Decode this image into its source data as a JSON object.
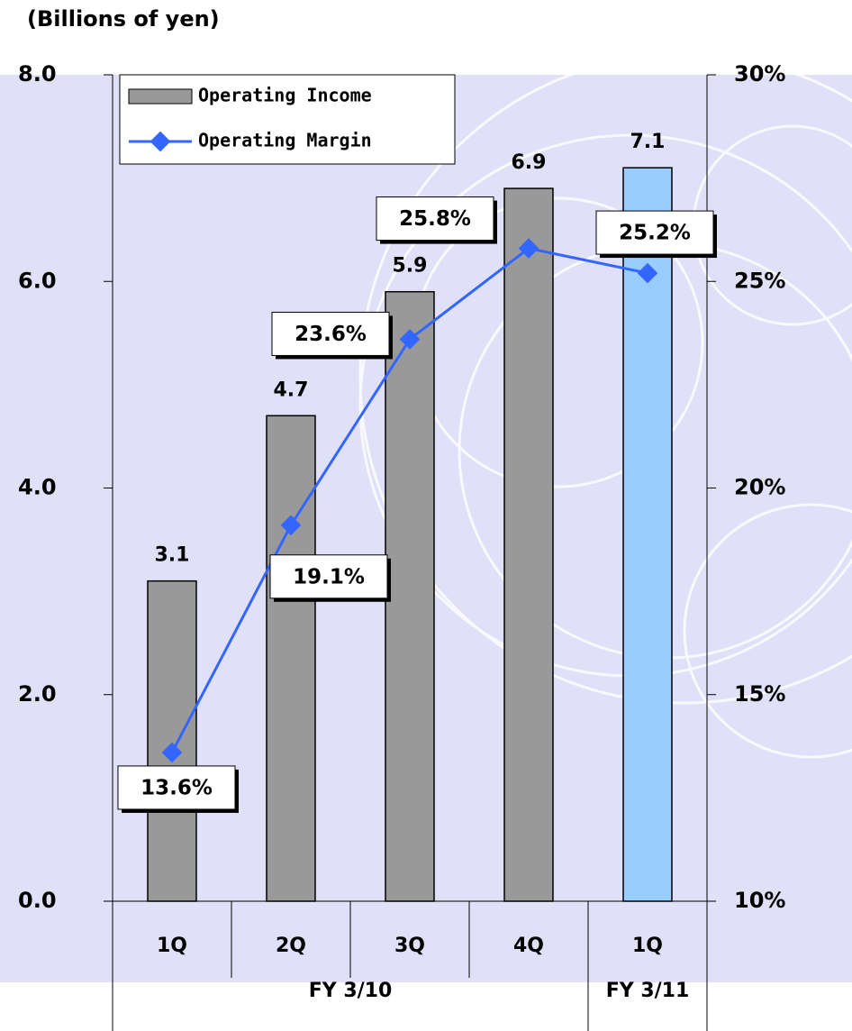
{
  "chart_data": {
    "type": "bar-line",
    "title": "(Billions of yen)",
    "categories": [
      "1Q",
      "2Q",
      "3Q",
      "4Q",
      "1Q"
    ],
    "groups": [
      {
        "label": "FY 3/10",
        "count": 4
      },
      {
        "label": "FY 3/11",
        "count": 1
      }
    ],
    "series": [
      {
        "name": "Operating Income",
        "type": "bar",
        "color": "#999999",
        "colors": [
          "#999999",
          "#999999",
          "#999999",
          "#999999",
          "#99ccff"
        ],
        "values": [
          3.1,
          4.7,
          5.9,
          6.9,
          7.1
        ]
      },
      {
        "name": "Operating Margin",
        "type": "line",
        "axis": "y2",
        "color": "#3366ff",
        "values": [
          13.6,
          19.1,
          23.6,
          25.8,
          25.2
        ],
        "value_labels": [
          "13.6%",
          "19.1%",
          "23.6%",
          "25.8%",
          "25.2%"
        ]
      }
    ],
    "ylim": [
      0,
      8
    ],
    "yticks": [
      {
        "value": 0,
        "label": "0.0"
      },
      {
        "value": 2,
        "label": "2.0"
      },
      {
        "value": 4,
        "label": "4.0"
      },
      {
        "value": 6,
        "label": "6.0"
      },
      {
        "value": 8,
        "label": "8.0"
      }
    ],
    "y2lim": [
      10,
      30
    ],
    "y2ticks": [
      {
        "value": 10,
        "label": "10%"
      },
      {
        "value": 15,
        "label": "15%"
      },
      {
        "value": 20,
        "label": "20%"
      },
      {
        "value": 25,
        "label": "25%"
      },
      {
        "value": 30,
        "label": "30%"
      }
    ],
    "legend": "top-left"
  }
}
